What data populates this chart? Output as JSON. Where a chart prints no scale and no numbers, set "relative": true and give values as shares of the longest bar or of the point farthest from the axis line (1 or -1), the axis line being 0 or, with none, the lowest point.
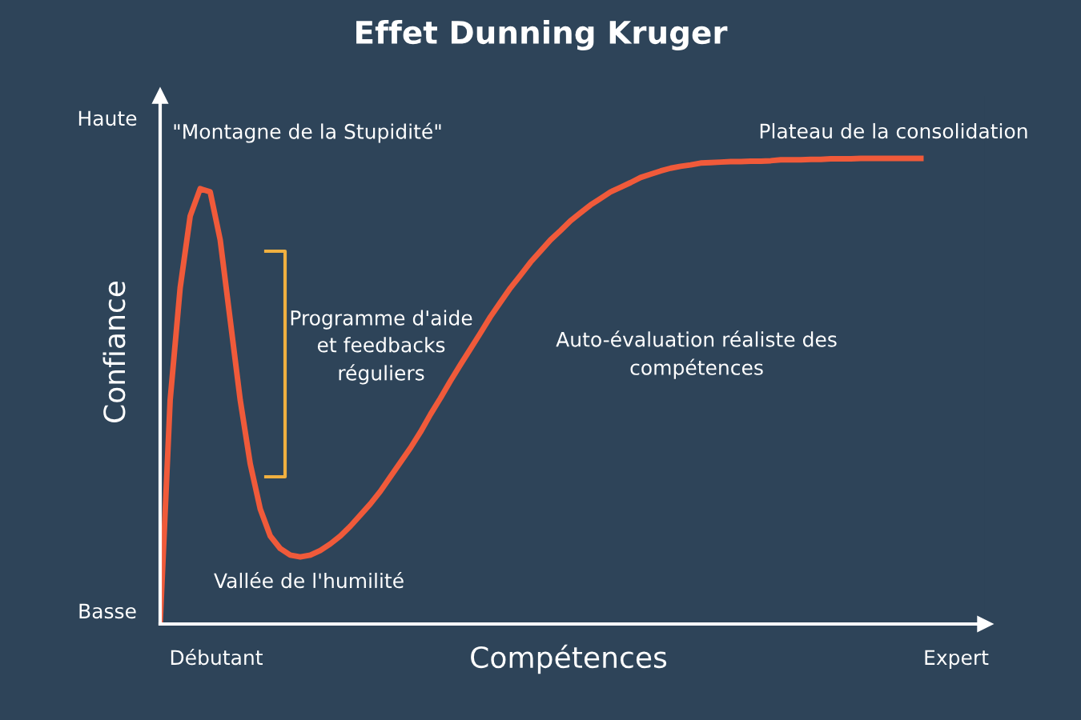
{
  "chart_data": {
    "type": "line",
    "title": "Effet Dunning Kruger",
    "xlabel": "Compétences",
    "ylabel": "Confiance",
    "relative": true,
    "categories": [
      null,
      null,
      null,
      null,
      null,
      null,
      null,
      null,
      null,
      null,
      null,
      null,
      null,
      null,
      null,
      null,
      null,
      null,
      null,
      null,
      null,
      null,
      null,
      null,
      null,
      null,
      null,
      null,
      null,
      null,
      null,
      null,
      null,
      null,
      null,
      null,
      null,
      null,
      null,
      null,
      null,
      null,
      null,
      null,
      null,
      null,
      null,
      null,
      null,
      null,
      null,
      null,
      null,
      null,
      null,
      null,
      null,
      null,
      null,
      null,
      null,
      null,
      null,
      null,
      null,
      null,
      null,
      null,
      null,
      null,
      null,
      null,
      null,
      null,
      null,
      null,
      null
    ],
    "series": [
      {
        "color": "#f05a3a",
        "values": [
          0,
          0.481,
          0.722,
          0.876,
          0.935,
          0.928,
          0.825,
          0.653,
          0.481,
          0.344,
          0.247,
          0.189,
          0.162,
          0.148,
          0.144,
          0.148,
          0.158,
          0.172,
          0.189,
          0.21,
          0.234,
          0.258,
          0.285,
          0.316,
          0.347,
          0.378,
          0.412,
          0.45,
          0.485,
          0.522,
          0.557,
          0.591,
          0.625,
          0.66,
          0.691,
          0.722,
          0.749,
          0.777,
          0.801,
          0.825,
          0.845,
          0.866,
          0.883,
          0.9,
          0.914,
          0.928,
          0.938,
          0.948,
          0.959,
          0.966,
          0.973,
          0.979,
          0.983,
          0.986,
          0.99,
          0.991,
          0.992,
          0.993,
          0.993,
          0.994,
          0.994,
          0.995,
          0.997,
          0.997,
          0.997,
          0.998,
          0.998,
          0.999,
          0.999,
          0.999,
          1,
          1,
          1,
          1,
          1,
          1,
          1
        ]
      }
    ],
    "annotations": [
      "Haute",
      "Basse",
      "Débutant",
      "Expert",
      "\"Montagne de la Stupidité\"",
      "Programme d'aide\net feedbacks\nréguliers",
      "Vallée de l'humilité",
      "Auto-évaluation réaliste des\ncompétences",
      "Plateau de la consolidation"
    ],
    "grid": false,
    "legend": false,
    "marker": "none",
    "line_style": "solid"
  }
}
